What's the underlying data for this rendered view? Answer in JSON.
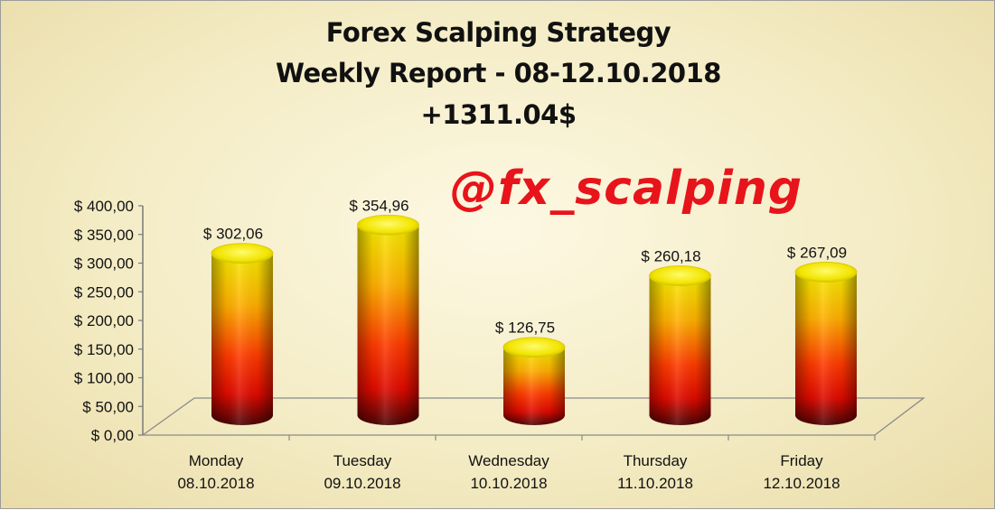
{
  "chart_data": {
    "type": "bar",
    "title": "Forex Scalping Strategy",
    "subtitle": "Weekly Report - 08-12.10.2018",
    "total": "+1311.04$",
    "watermark": "@fx_scalping",
    "categories": [
      [
        "Monday",
        "08.10.2018"
      ],
      [
        "Tuesday",
        "09.10.2018"
      ],
      [
        "Wednesday",
        "10.10.2018"
      ],
      [
        "Thursday",
        "11.10.2018"
      ],
      [
        "Friday",
        "12.10.2018"
      ]
    ],
    "values": [
      302.06,
      354.96,
      126.75,
      260.18,
      267.09
    ],
    "data_labels": [
      "$ 302,06",
      "$ 354,96",
      "$ 126,75",
      "$ 260,18",
      "$ 267,09"
    ],
    "y_ticks": [
      "$ 0,00",
      "$ 50,00",
      "$ 100,00",
      "$ 150,00",
      "$ 200,00",
      "$ 250,00",
      "$ 300,00",
      "$ 350,00",
      "$ 400,00"
    ],
    "ylim": [
      0,
      400
    ],
    "grid": false,
    "legend": "none",
    "colors": {
      "top": "#f6ec00",
      "mid": "#ff8a00",
      "low": "#ff1500",
      "base": "#5a0606",
      "watermark": "#e8141b"
    }
  }
}
